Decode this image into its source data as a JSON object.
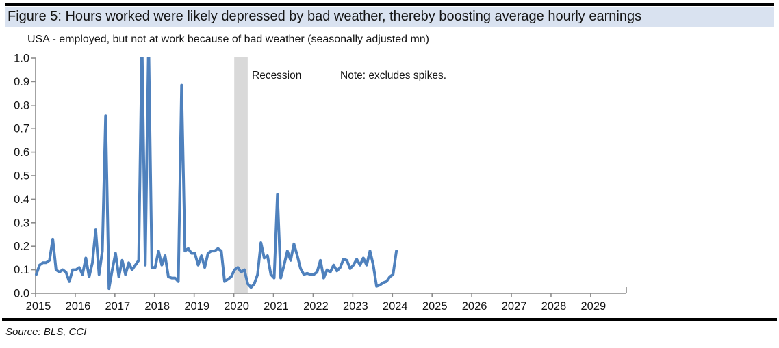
{
  "header": {
    "title": "Figure 5: Hours worked were likely depressed by bad weather, thereby boosting average hourly earnings"
  },
  "chart_data": {
    "type": "line",
    "title": "Figure 5: Hours worked were likely depressed by bad weather, thereby boosting average hourly earnings",
    "subtitle": "USA - employed, but not at work because of bad weather (seasonally adjusted mn)",
    "series_name": "USA - employed, but not at work because of bad weather (seasonally adjusted mn)",
    "frequency": "monthly",
    "x_start_year": 2015,
    "x_start_month": 1,
    "values": [
      0.08,
      0.12,
      0.13,
      0.13,
      0.14,
      0.23,
      0.1,
      0.09,
      0.1,
      0.09,
      0.05,
      0.1,
      0.1,
      0.11,
      0.08,
      0.15,
      0.07,
      0.13,
      0.27,
      0.08,
      0.18,
      0.755,
      0.02,
      0.1,
      0.17,
      0.07,
      0.14,
      0.08,
      0.13,
      0.1,
      0.12,
      0.14,
      1.08,
      0.12,
      1.08,
      0.11,
      0.11,
      0.18,
      0.12,
      0.16,
      0.07,
      0.065,
      0.065,
      0.05,
      0.885,
      0.18,
      0.19,
      0.17,
      0.17,
      0.12,
      0.16,
      0.11,
      0.17,
      0.18,
      0.18,
      0.19,
      0.18,
      0.05,
      0.06,
      0.07,
      0.1,
      0.11,
      0.09,
      0.1,
      0.04,
      0.025,
      0.04,
      0.08,
      0.215,
      0.15,
      0.16,
      0.08,
      0.065,
      0.42,
      0.065,
      0.12,
      0.18,
      0.14,
      0.21,
      0.16,
      0.105,
      0.08,
      0.085,
      0.08,
      0.08,
      0.09,
      0.14,
      0.065,
      0.1,
      0.09,
      0.12,
      0.095,
      0.11,
      0.145,
      0.14,
      0.105,
      0.12,
      0.145,
      0.12,
      0.15,
      0.12,
      0.18,
      0.12,
      0.03,
      0.035,
      0.045,
      0.05,
      0.07,
      0.08,
      0.18
    ],
    "clipping_note": "2017 hurricane spikes exceed 1.0 and are clipped at the axis maximum",
    "line_color": "#4f81bd",
    "xlim": [
      2015,
      2029.9
    ],
    "ylim": [
      0,
      1.0
    ],
    "yticks": [
      0,
      0.1,
      0.2,
      0.3,
      0.4,
      0.5,
      0.6,
      0.7,
      0.8,
      0.9,
      1.0
    ],
    "xticks": [
      2015,
      2016,
      2017,
      2018,
      2019,
      2020,
      2021,
      2022,
      2023,
      2024,
      2025,
      2026,
      2027,
      2028,
      2029
    ],
    "grid": false,
    "legend_position": "none",
    "recession_band": {
      "x_start": 2020.01,
      "x_end": 2020.35,
      "color": "#d9d9d9",
      "label": "Recession"
    },
    "note": "Note: excludes spikes."
  },
  "footer": {
    "source": "Source: BLS, CCI"
  },
  "colors": {
    "title_bar_bg": "#d9e2f0",
    "axis": "#8c8c8c",
    "rule": "#000000",
    "text": "#141414"
  }
}
